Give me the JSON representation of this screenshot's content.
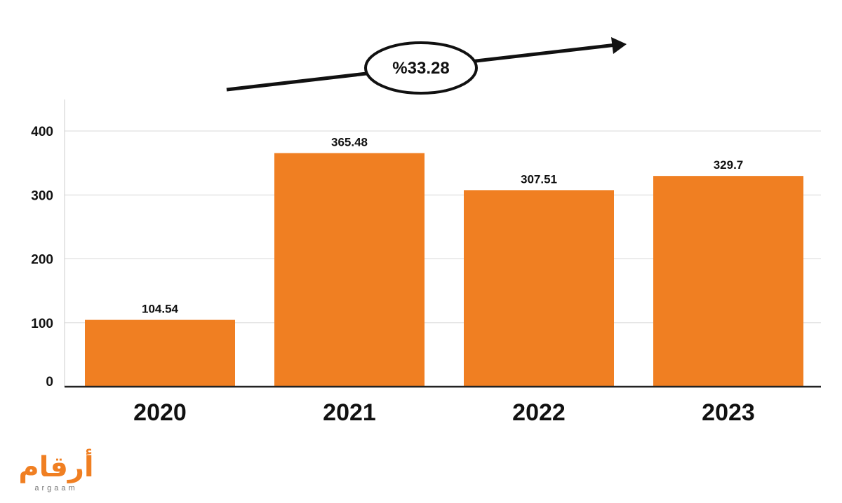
{
  "chart_data": {
    "type": "bar",
    "categories": [
      "2020",
      "2021",
      "2022",
      "2023"
    ],
    "values": [
      104.54,
      365.48,
      307.51,
      329.7
    ],
    "value_labels": [
      "104.54",
      "365.48",
      "307.51",
      "329.7"
    ],
    "yticks": [
      0,
      100,
      200,
      300,
      400
    ],
    "ylim": [
      0,
      450
    ],
    "grid": true,
    "bar_color": "#f07f22",
    "annotation": {
      "text": "%33.28",
      "shape": "arrow-up-right"
    }
  },
  "logo": {
    "arabic": "أرقام",
    "latin": "argaam"
  }
}
